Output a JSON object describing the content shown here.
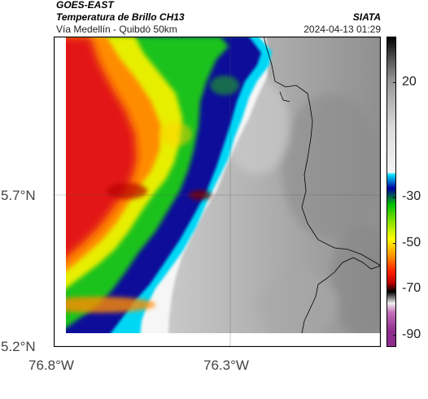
{
  "header": {
    "satellite": "GOES-EAST",
    "product": "Temperatura de Brillo CH13",
    "region": "Vía Medellín - Quibdó 50km",
    "agency": "SIATA",
    "datetime": "2024-04-13 01:29"
  },
  "axes": {
    "lat_ticks": [
      "5.7°N",
      "5.2°N"
    ],
    "lon_ticks": [
      "76.8°W",
      "76.3°W"
    ]
  },
  "colorbar": {
    "tick_labels": [
      "20",
      "-30",
      "-50",
      "-70",
      "-90"
    ],
    "tick_values": [
      20,
      -30,
      -50,
      -70,
      -90
    ],
    "range": [
      -95,
      40
    ],
    "stops": [
      {
        "v": 40,
        "c": "#000000"
      },
      {
        "v": 30,
        "c": "#555555"
      },
      {
        "v": 20,
        "c": "#9a9a9a"
      },
      {
        "v": 0,
        "c": "#dcdcdc"
      },
      {
        "v": -19,
        "c": "#f4f4f4"
      },
      {
        "v": -20,
        "c": "#00e5ff"
      },
      {
        "v": -26,
        "c": "#0000a0"
      },
      {
        "v": -33,
        "c": "#00c000"
      },
      {
        "v": -40,
        "c": "#7fe000"
      },
      {
        "v": -48,
        "c": "#ffff00"
      },
      {
        "v": -55,
        "c": "#ff9900"
      },
      {
        "v": -62,
        "c": "#ff2200"
      },
      {
        "v": -67,
        "c": "#c00000"
      },
      {
        "v": -71,
        "c": "#000000"
      },
      {
        "v": -76,
        "c": "#eeeeee"
      },
      {
        "v": -80,
        "c": "#c26fb8"
      },
      {
        "v": -88,
        "c": "#8e2d8e"
      }
    ]
  },
  "colors": {
    "cold_red": "#e21616",
    "warm_gray": "#9c9c9c",
    "border": "#000000"
  }
}
